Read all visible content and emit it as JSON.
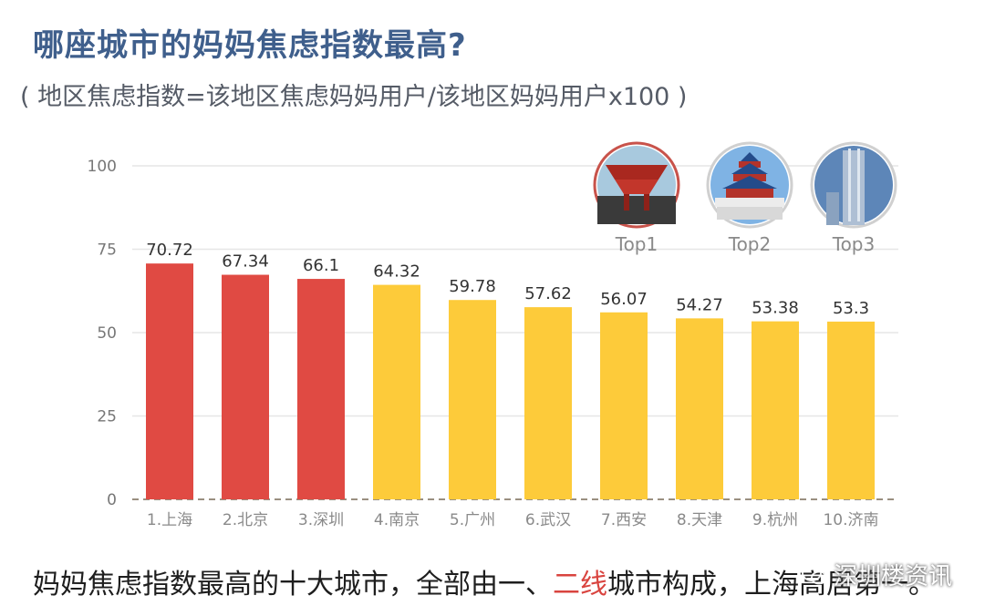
{
  "title": "哪座城市的妈妈焦虑指数最高?",
  "subtitle": "( 地区焦虑指数=该地区焦虑妈妈用户/该地区妈妈用户x100 )",
  "footer": {
    "text_before": "妈妈焦虑指数最高的十大城市，全部由一、",
    "text_highlight": "二线",
    "text_after": "城市构成，上海高居第一。"
  },
  "watermark": "深圳楼资讯",
  "colors": {
    "top3": "#e04a43",
    "others": "#fdcb3a",
    "title": "#3f5f8c",
    "highlight": "#d9443f"
  },
  "badges": [
    {
      "label": "Top1",
      "icon": "pavilion-icon"
    },
    {
      "label": "Top2",
      "icon": "temple-of-heaven-icon"
    },
    {
      "label": "Top3",
      "icon": "skyscraper-icon"
    }
  ],
  "chart_data": {
    "type": "bar",
    "categories": [
      "1.上海",
      "2.北京",
      "3.深圳",
      "4.南京",
      "5.广州",
      "6.武汉",
      "7.西安",
      "8.天津",
      "9.杭州",
      "10.济南"
    ],
    "values": [
      70.72,
      67.34,
      66.1,
      64.32,
      59.78,
      57.62,
      56.07,
      54.27,
      53.38,
      53.3
    ],
    "value_labels": [
      "70.72",
      "67.34",
      "66.1",
      "64.32",
      "59.78",
      "57.62",
      "56.07",
      "54.27",
      "53.38",
      "53.3"
    ],
    "highlight_count": 3,
    "ylim": [
      0,
      100
    ],
    "yticks": [
      0,
      25,
      50,
      75,
      100
    ],
    "grid": true
  }
}
